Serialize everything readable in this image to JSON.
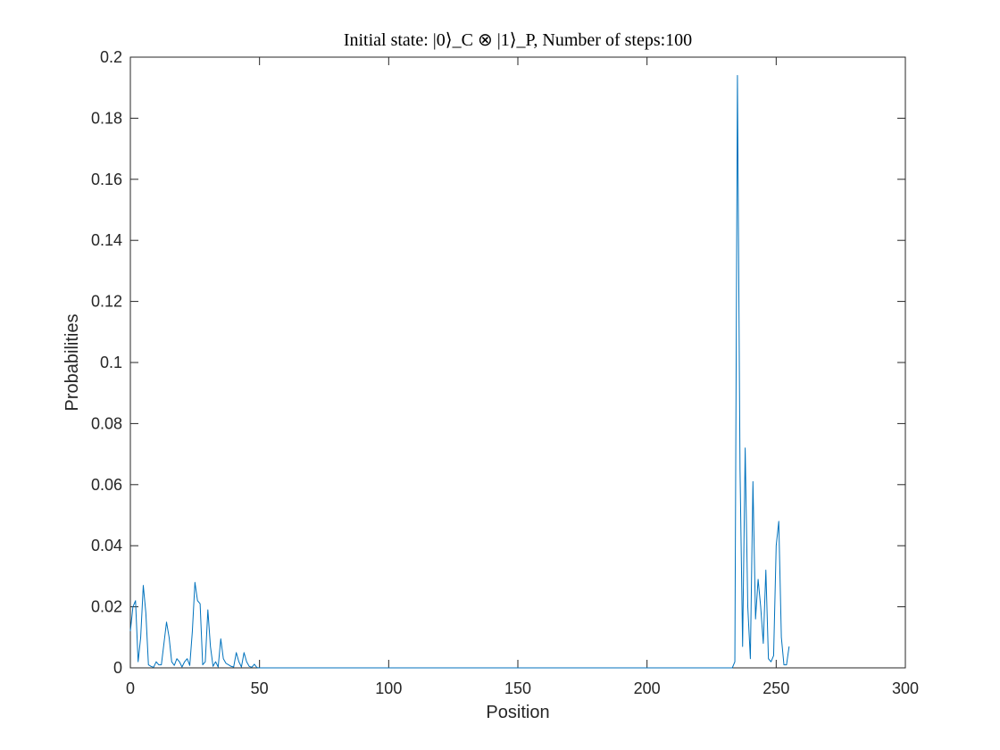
{
  "chart_data": {
    "type": "line",
    "title": "Initial state: |0⟩_C ⊗ |1⟩_P, Number of steps:100",
    "xlabel": "Position",
    "ylabel": "Probabilities",
    "xlim": [
      0,
      300
    ],
    "ylim": [
      0,
      0.2
    ],
    "xticks": [
      0,
      50,
      100,
      150,
      200,
      250,
      300
    ],
    "xtick_labels": [
      "0",
      "50",
      "100",
      "150",
      "200",
      "250",
      "300"
    ],
    "yticks": [
      0,
      0.02,
      0.04,
      0.06,
      0.08,
      0.1,
      0.12,
      0.14,
      0.16,
      0.18,
      0.2
    ],
    "ytick_labels": [
      "0",
      "0.02",
      "0.04",
      "0.06",
      "0.08",
      "0.1",
      "0.12",
      "0.14",
      "0.16",
      "0.18",
      "0.2"
    ],
    "grid": false,
    "line_color": "#0072BD",
    "series": [
      {
        "x": [
          0,
          1,
          2,
          3,
          4,
          5,
          6,
          7,
          8,
          9,
          10,
          11,
          12,
          13,
          14,
          15,
          16,
          17,
          18,
          19,
          20,
          21,
          22,
          23,
          24,
          25,
          26,
          27,
          28,
          29,
          30,
          31,
          32,
          33,
          34,
          35,
          36,
          37,
          38,
          39,
          40,
          41,
          42,
          43,
          44,
          45,
          46,
          47,
          48,
          49,
          50,
          60,
          80,
          100,
          120,
          140,
          160,
          180,
          200,
          220,
          233,
          234,
          235,
          236,
          237,
          238,
          239,
          240,
          241,
          242,
          243,
          244,
          245,
          246,
          247,
          248,
          249,
          250,
          251,
          252,
          253,
          254,
          255
        ],
        "y": [
          0.012,
          0.02,
          0.022,
          0.002,
          0.01,
          0.027,
          0.018,
          0.001,
          0.0005,
          0.0002,
          0.002,
          0.001,
          0.001,
          0.008,
          0.015,
          0.01,
          0.002,
          0.0008,
          0.003,
          0.002,
          0.0003,
          0.002,
          0.003,
          0.0008,
          0.012,
          0.028,
          0.022,
          0.021,
          0.001,
          0.002,
          0.019,
          0.007,
          0.0005,
          0.002,
          0.0003,
          0.0095,
          0.003,
          0.0015,
          0.001,
          0.0005,
          0.0003,
          0.005,
          0.002,
          0.0003,
          0.005,
          0.002,
          0.0005,
          0.0002,
          0.0012,
          0.0001,
          0.0,
          0.0,
          0.0,
          0.0,
          0.0,
          0.0,
          0.0,
          0.0,
          0.0,
          0.0,
          0.0,
          0.002,
          0.194,
          0.065,
          0.007,
          0.072,
          0.02,
          0.003,
          0.061,
          0.016,
          0.029,
          0.02,
          0.008,
          0.032,
          0.003,
          0.002,
          0.004,
          0.04,
          0.048,
          0.01,
          0.001,
          0.001,
          0.007
        ]
      }
    ]
  }
}
